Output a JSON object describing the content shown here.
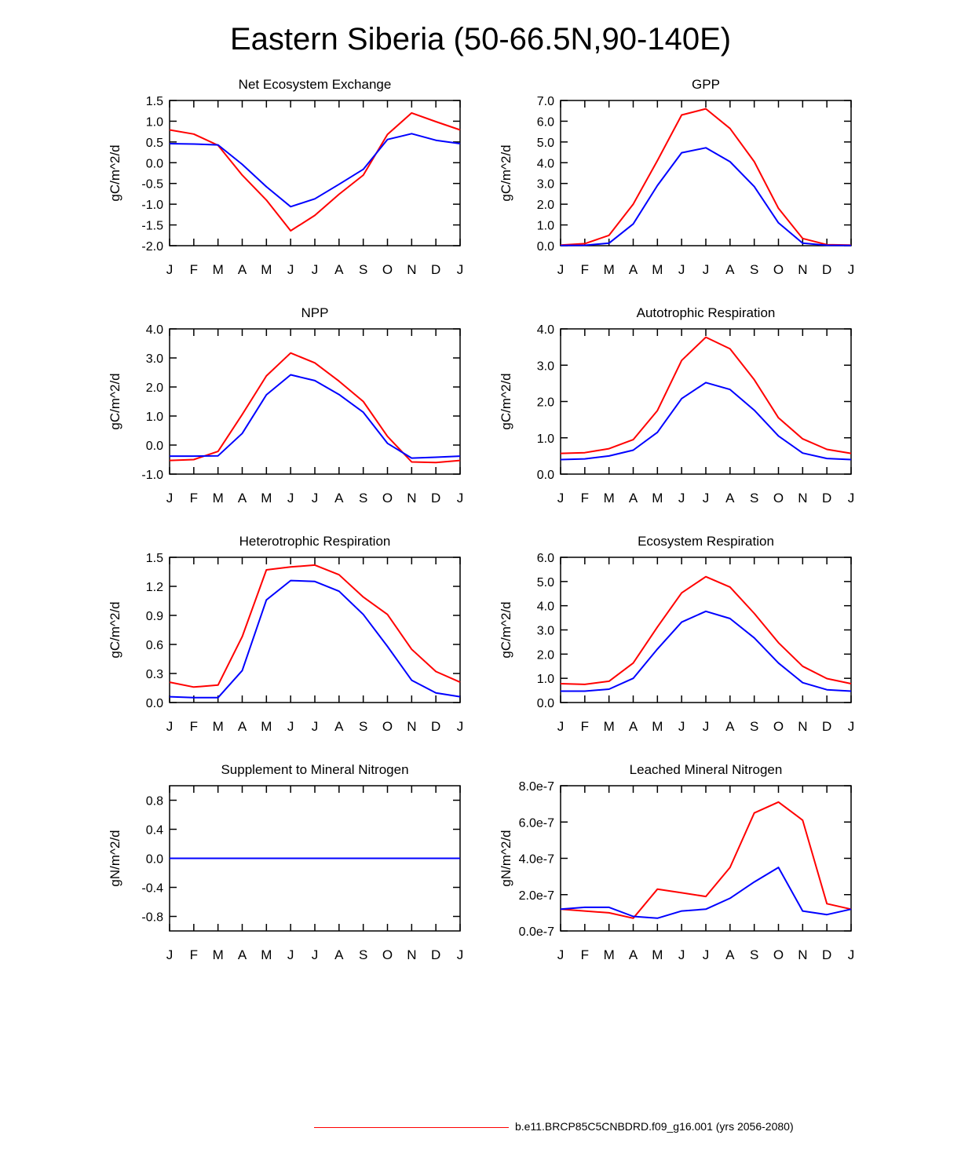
{
  "page": {
    "title": "Eastern Siberia (50-66.5N,90-140E)"
  },
  "legend": {
    "label": "b.e11.BRCP85C5CNBDRD.f09_g16.001 (yrs 2056-2080)",
    "color": "#ff0000"
  },
  "colors": {
    "series_red": "#ff0000",
    "series_blue": "#0000ff",
    "axis": "#000000"
  },
  "chart_data": [
    {
      "type": "line",
      "title": "Net Ecosystem Exchange",
      "ylabel": "gC/m^2/d",
      "categories": [
        "J",
        "F",
        "M",
        "A",
        "M",
        "J",
        "J",
        "A",
        "S",
        "O",
        "N",
        "D",
        "J"
      ],
      "ylim": [
        -2.0,
        1.5
      ],
      "yticks": [
        -2.0,
        -1.5,
        -1.0,
        -0.5,
        0.0,
        0.5,
        1.0,
        1.5
      ],
      "ytick_labels": [
        "-2.0",
        "-1.5",
        "-1.0",
        "-0.5",
        "0.0",
        "0.5",
        "1.0",
        "1.5"
      ],
      "series": [
        {
          "name": "red",
          "color": "#ff0000",
          "values": [
            0.79,
            0.69,
            0.42,
            -0.3,
            -0.9,
            -1.64,
            -1.27,
            -0.76,
            -0.3,
            0.68,
            1.2,
            0.99,
            0.79
          ]
        },
        {
          "name": "blue",
          "color": "#0000ff",
          "values": [
            0.46,
            0.45,
            0.43,
            -0.04,
            -0.58,
            -1.06,
            -0.87,
            -0.52,
            -0.16,
            0.56,
            0.7,
            0.54,
            0.46
          ]
        }
      ]
    },
    {
      "type": "line",
      "title": "GPP",
      "ylabel": "gC/m^2/d",
      "categories": [
        "J",
        "F",
        "M",
        "A",
        "M",
        "J",
        "J",
        "A",
        "S",
        "O",
        "N",
        "D",
        "J"
      ],
      "ylim": [
        0.0,
        7.0
      ],
      "yticks": [
        0,
        1,
        2,
        3,
        4,
        5,
        6,
        7
      ],
      "ytick_labels": [
        "0.0",
        "1.0",
        "2.0",
        "3.0",
        "4.0",
        "5.0",
        "6.0",
        "7.0"
      ],
      "series": [
        {
          "name": "red",
          "color": "#ff0000",
          "values": [
            0.03,
            0.1,
            0.5,
            2.0,
            4.1,
            6.3,
            6.6,
            5.65,
            4.05,
            1.8,
            0.35,
            0.05,
            0.03
          ]
        },
        {
          "name": "blue",
          "color": "#0000ff",
          "values": [
            0.01,
            0.02,
            0.12,
            1.05,
            2.9,
            4.48,
            4.72,
            4.05,
            2.85,
            1.1,
            0.12,
            0.02,
            0.01
          ]
        }
      ]
    },
    {
      "type": "line",
      "title": "NPP",
      "ylabel": "gC/m^2/d",
      "categories": [
        "J",
        "F",
        "M",
        "A",
        "M",
        "J",
        "J",
        "A",
        "S",
        "O",
        "N",
        "D",
        "J"
      ],
      "ylim": [
        -1.0,
        4.0
      ],
      "yticks": [
        -1,
        0,
        1,
        2,
        3,
        4
      ],
      "ytick_labels": [
        "-1.0",
        "0.0",
        "1.0",
        "2.0",
        "3.0",
        "4.0"
      ],
      "series": [
        {
          "name": "red",
          "color": "#ff0000",
          "values": [
            -0.53,
            -0.5,
            -0.22,
            1.05,
            2.38,
            3.17,
            2.83,
            2.2,
            1.5,
            0.3,
            -0.58,
            -0.6,
            -0.53
          ]
        },
        {
          "name": "blue",
          "color": "#0000ff",
          "values": [
            -0.38,
            -0.38,
            -0.37,
            0.4,
            1.73,
            2.42,
            2.22,
            1.74,
            1.13,
            0.06,
            -0.45,
            -0.42,
            -0.38
          ]
        }
      ]
    },
    {
      "type": "line",
      "title": "Autotrophic Respiration",
      "ylabel": "gC/m^2/d",
      "categories": [
        "J",
        "F",
        "M",
        "A",
        "M",
        "J",
        "J",
        "A",
        "S",
        "O",
        "N",
        "D",
        "J"
      ],
      "ylim": [
        0.0,
        4.0
      ],
      "yticks": [
        0,
        1,
        2,
        3,
        4
      ],
      "ytick_labels": [
        "0.0",
        "1.0",
        "2.0",
        "3.0",
        "4.0"
      ],
      "series": [
        {
          "name": "red",
          "color": "#ff0000",
          "values": [
            0.57,
            0.59,
            0.7,
            0.95,
            1.75,
            3.13,
            3.77,
            3.45,
            2.6,
            1.55,
            0.97,
            0.68,
            0.57
          ]
        },
        {
          "name": "blue",
          "color": "#0000ff",
          "values": [
            0.4,
            0.42,
            0.5,
            0.66,
            1.15,
            2.08,
            2.52,
            2.33,
            1.76,
            1.05,
            0.58,
            0.43,
            0.4
          ]
        }
      ]
    },
    {
      "type": "line",
      "title": "Heterotrophic Respiration",
      "ylabel": "gC/m^2/d",
      "categories": [
        "J",
        "F",
        "M",
        "A",
        "M",
        "J",
        "J",
        "A",
        "S",
        "O",
        "N",
        "D",
        "J"
      ],
      "ylim": [
        0.0,
        1.5
      ],
      "yticks": [
        0,
        0.3,
        0.6,
        0.9,
        1.2,
        1.5
      ],
      "ytick_labels": [
        "0.0",
        "0.3",
        "0.6",
        "0.9",
        "1.2",
        "1.5"
      ],
      "series": [
        {
          "name": "red",
          "color": "#ff0000",
          "values": [
            0.21,
            0.16,
            0.18,
            0.68,
            1.37,
            1.4,
            1.42,
            1.32,
            1.09,
            0.91,
            0.55,
            0.32,
            0.21
          ]
        },
        {
          "name": "blue",
          "color": "#0000ff",
          "values": [
            0.06,
            0.05,
            0.05,
            0.33,
            1.06,
            1.26,
            1.25,
            1.15,
            0.91,
            0.58,
            0.23,
            0.1,
            0.06
          ]
        }
      ]
    },
    {
      "type": "line",
      "title": "Ecosystem Respiration",
      "ylabel": "gC/m^2/d",
      "categories": [
        "J",
        "F",
        "M",
        "A",
        "M",
        "J",
        "J",
        "A",
        "S",
        "O",
        "N",
        "D",
        "J"
      ],
      "ylim": [
        0.0,
        6.0
      ],
      "yticks": [
        0,
        1,
        2,
        3,
        4,
        5,
        6
      ],
      "ytick_labels": [
        "0.0",
        "1.0",
        "2.0",
        "3.0",
        "4.0",
        "5.0",
        "6.0"
      ],
      "series": [
        {
          "name": "red",
          "color": "#ff0000",
          "values": [
            0.78,
            0.75,
            0.88,
            1.63,
            3.12,
            4.53,
            5.2,
            4.77,
            3.68,
            2.47,
            1.5,
            0.99,
            0.78
          ]
        },
        {
          "name": "blue",
          "color": "#0000ff",
          "values": [
            0.47,
            0.47,
            0.55,
            1.0,
            2.21,
            3.32,
            3.77,
            3.47,
            2.67,
            1.63,
            0.82,
            0.53,
            0.47
          ]
        }
      ]
    },
    {
      "type": "line",
      "title": "Supplement to Mineral Nitrogen",
      "ylabel": "gN/m^2/d",
      "categories": [
        "J",
        "F",
        "M",
        "A",
        "M",
        "J",
        "J",
        "A",
        "S",
        "O",
        "N",
        "D",
        "J"
      ],
      "ylim": [
        -1.0,
        1.0
      ],
      "yticks": [
        -0.8,
        -0.4,
        0.0,
        0.4,
        0.8
      ],
      "ytick_labels": [
        "-0.8",
        "-0.4",
        "0.0",
        "0.4",
        "0.8"
      ],
      "series": [
        {
          "name": "red",
          "color": "#ff0000",
          "values": [
            0,
            0,
            0,
            0,
            0,
            0,
            0,
            0,
            0,
            0,
            0,
            0,
            0
          ]
        },
        {
          "name": "blue",
          "color": "#0000ff",
          "values": [
            0,
            0,
            0,
            0,
            0,
            0,
            0,
            0,
            0,
            0,
            0,
            0,
            0
          ]
        }
      ]
    },
    {
      "type": "line",
      "title": "Leached Mineral Nitrogen",
      "ylabel": "gN/m^2/d",
      "categories": [
        "J",
        "F",
        "M",
        "A",
        "M",
        "J",
        "J",
        "A",
        "S",
        "O",
        "N",
        "D",
        "J"
      ],
      "ylim": [
        0.0,
        8e-07
      ],
      "yticks": [
        0,
        2e-07,
        4e-07,
        6e-07,
        8e-07
      ],
      "ytick_labels": [
        "0.0e-7",
        "2.0e-7",
        "4.0e-7",
        "6.0e-7",
        "8.0e-7"
      ],
      "series": [
        {
          "name": "red",
          "color": "#ff0000",
          "values": [
            1.2e-07,
            1.1e-07,
            1e-07,
            7e-08,
            2.3e-07,
            2.1e-07,
            1.9e-07,
            3.5e-07,
            6.5e-07,
            7.1e-07,
            6.1e-07,
            1.5e-07,
            1.2e-07
          ]
        },
        {
          "name": "blue",
          "color": "#0000ff",
          "values": [
            1.2e-07,
            1.3e-07,
            1.3e-07,
            8e-08,
            7e-08,
            1.1e-07,
            1.2e-07,
            1.8e-07,
            2.7e-07,
            3.5e-07,
            1.1e-07,
            9e-08,
            1.2e-07
          ]
        }
      ]
    }
  ]
}
